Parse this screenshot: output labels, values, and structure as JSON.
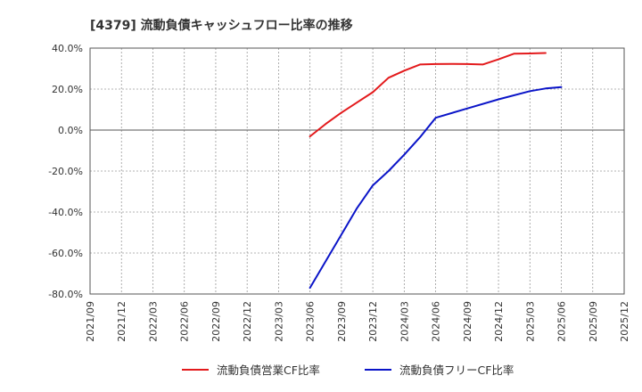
{
  "chart_data": {
    "type": "line",
    "title": "[4379]  流動負債キャッシュフロー比率の推移",
    "xlabel": "",
    "ylabel": "",
    "ylim": [
      -80,
      40
    ],
    "y_ticks": [
      40,
      20,
      0,
      -20,
      -40,
      -60,
      -80
    ],
    "y_tick_labels": [
      "40.0%",
      "20.0%",
      "0.0%",
      "-20.0%",
      "-40.0%",
      "-60.0%",
      "-80.0%"
    ],
    "x_tick_labels": [
      "2021/09",
      "2021/12",
      "2022/03",
      "2022/06",
      "2022/09",
      "2022/12",
      "2023/03",
      "2023/06",
      "2023/09",
      "2023/12",
      "2024/03",
      "2024/06",
      "2024/09",
      "2024/12",
      "2025/03",
      "2025/06",
      "2025/09",
      "2025/12"
    ],
    "grid": true,
    "legend_position": "bottom",
    "series": [
      {
        "name": "流動負債営業CF比率",
        "color": "#e31a1c",
        "x": [
          "2023/06",
          "2023/09",
          "2023/12",
          "2024/03",
          "2024/06",
          "2024/09",
          "2024/12",
          "2025/03",
          "2025/06"
        ],
        "points": [
          [
            7,
            -3.1
          ],
          [
            7.5,
            3
          ],
          [
            8,
            8.5
          ],
          [
            8.5,
            13.5
          ],
          [
            9,
            18.5
          ],
          [
            9.5,
            25.5
          ],
          [
            10,
            29
          ],
          [
            10.5,
            32
          ],
          [
            11,
            32.2
          ],
          [
            11.5,
            32.3
          ],
          [
            12,
            32.2
          ],
          [
            12.5,
            32
          ],
          [
            13,
            34.5
          ],
          [
            13.5,
            37.3
          ],
          [
            14,
            37.4
          ],
          [
            14.5,
            37.6
          ]
        ]
      },
      {
        "name": "流動負債フリーCF比率",
        "color": "#0a14c8",
        "x": [
          "2023/06",
          "2023/09",
          "2023/12",
          "2024/03",
          "2024/06",
          "2024/09",
          "2024/12",
          "2025/03",
          "2025/06"
        ],
        "points": [
          [
            7,
            -77
          ],
          [
            8,
            -51
          ],
          [
            8.5,
            -38
          ],
          [
            9,
            -27
          ],
          [
            9.5,
            -20
          ],
          [
            10,
            -12
          ],
          [
            10.5,
            -3.5
          ],
          [
            11,
            6
          ],
          [
            12,
            10.5
          ],
          [
            13,
            15
          ],
          [
            14,
            19
          ],
          [
            14.5,
            20.3
          ],
          [
            15,
            21
          ]
        ]
      }
    ]
  }
}
